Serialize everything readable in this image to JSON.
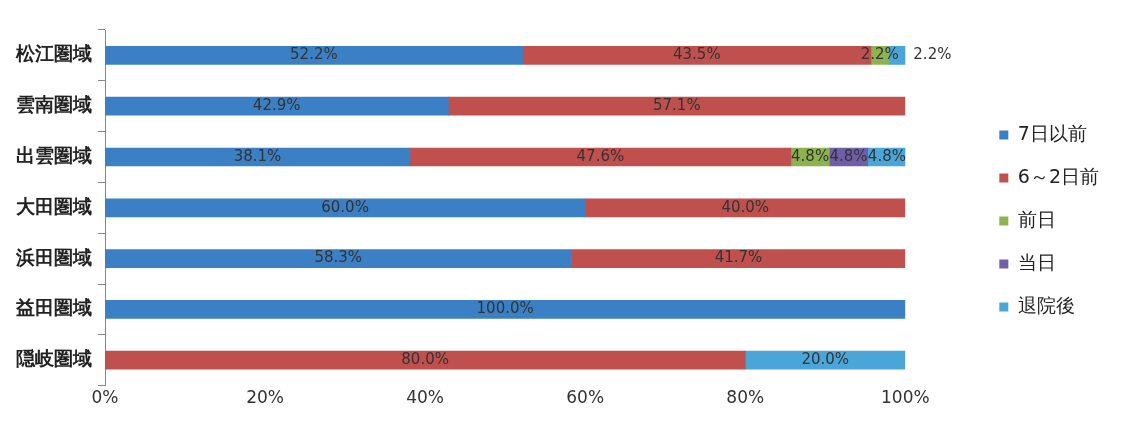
{
  "chart_data": {
    "type": "bar",
    "orientation": "horizontal",
    "stacked": true,
    "categories": [
      "松江圏域",
      "雲南圏域",
      "出雲圏域",
      "大田圏域",
      "浜田圏域",
      "益田圏域",
      "隠岐圏域"
    ],
    "series": [
      {
        "name": "7日以前",
        "color": "#3b7fc4",
        "values": [
          52.2,
          42.9,
          38.1,
          60.0,
          58.3,
          100.0,
          null
        ],
        "value_labels": [
          "52.2%",
          "42.9%",
          "38.1%",
          "60.0%",
          "58.3%",
          "100.0%",
          null
        ]
      },
      {
        "name": "6～2日前",
        "color": "#c0504d",
        "values": [
          43.5,
          57.1,
          47.6,
          40.0,
          41.7,
          null,
          80.0
        ],
        "value_labels": [
          "43.5%",
          "57.1%",
          "47.6%",
          "40.0%",
          "41.7%",
          null,
          "80.0%"
        ]
      },
      {
        "name": "前日",
        "color": "#8db34e",
        "values": [
          2.2,
          null,
          4.8,
          null,
          null,
          null,
          null
        ],
        "value_labels": [
          "2.2%",
          null,
          "4.8%",
          null,
          null,
          null,
          null
        ]
      },
      {
        "name": "当日",
        "color": "#6f5fa8",
        "values": [
          null,
          null,
          4.8,
          null,
          null,
          null,
          null
        ],
        "value_labels": [
          null,
          null,
          "4.8%",
          null,
          null,
          null,
          null
        ]
      },
      {
        "name": "退院後",
        "color": "#4aa5d8",
        "values": [
          2.2,
          null,
          4.8,
          null,
          null,
          null,
          20.0
        ],
        "value_labels": [
          "2.2%",
          null,
          "4.8%",
          null,
          null,
          null,
          "20.0%"
        ]
      }
    ],
    "xlim": [
      0,
      100
    ],
    "xticks": [
      {
        "value": 0,
        "label": "0%"
      },
      {
        "value": 20,
        "label": "20%"
      },
      {
        "value": 40,
        "label": "40%"
      },
      {
        "value": 60,
        "label": "60%"
      },
      {
        "value": 80,
        "label": "80%"
      },
      {
        "value": 100,
        "label": "100%"
      }
    ],
    "grid": false,
    "legend": "right"
  }
}
